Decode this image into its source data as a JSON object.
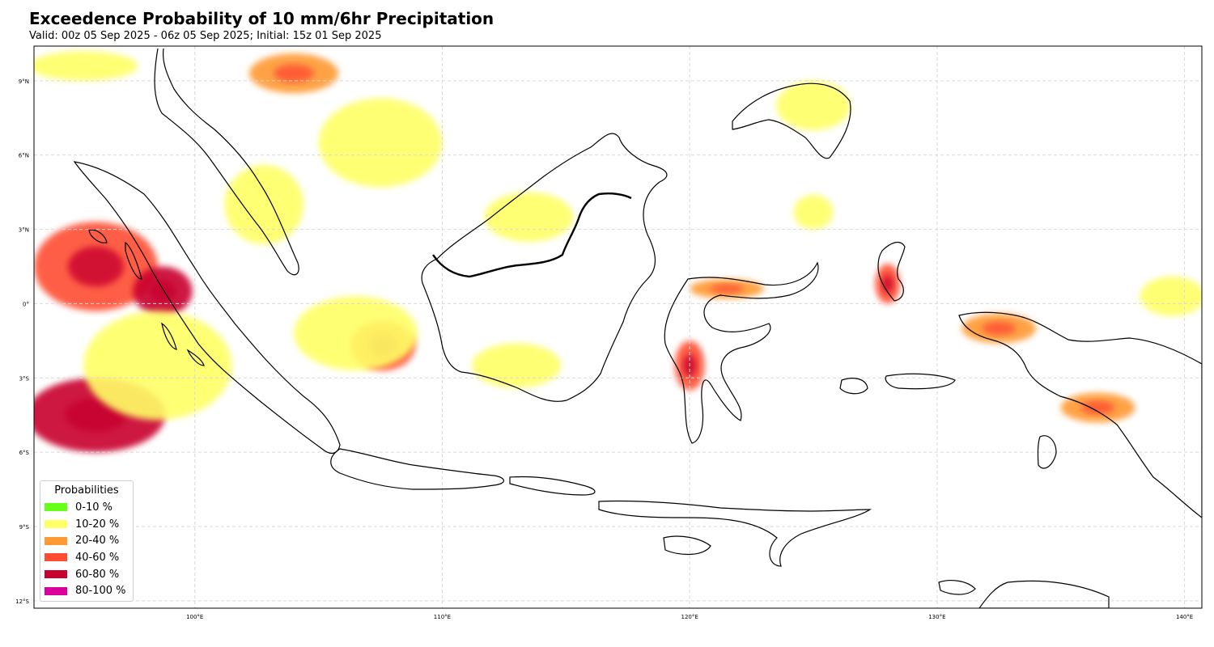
{
  "title": "Exceedence Probability of 10 mm/6hr Precipitation",
  "subtitle": "Valid: 00z 05 Sep 2025 - 06z 05 Sep 2025; Initial: 15z 01 Sep 2025",
  "map": {
    "lon_range": [
      93.5,
      140.7
    ],
    "lat_range": [
      -12.3,
      10.4
    ],
    "lon_ticks": [
      {
        "value": 100,
        "label": "100°E"
      },
      {
        "value": 110,
        "label": "110°E"
      },
      {
        "value": 120,
        "label": "120°E"
      },
      {
        "value": 130,
        "label": "130°E"
      },
      {
        "value": 140,
        "label": "140°E"
      }
    ],
    "lat_ticks": [
      {
        "value": 9,
        "label": "9°N"
      },
      {
        "value": 6,
        "label": "6°N"
      },
      {
        "value": 3,
        "label": "3°N"
      },
      {
        "value": 0,
        "label": "0°"
      },
      {
        "value": -3,
        "label": "3°S"
      },
      {
        "value": -6,
        "label": "6°S"
      },
      {
        "value": -9,
        "label": "9°S"
      },
      {
        "value": -12,
        "label": "12°S"
      }
    ],
    "gridlines": true,
    "coastline_color": "#000000",
    "border_color": "#000000",
    "grid_color": "#d9d9d9"
  },
  "legend": {
    "title": "Probabilities",
    "position": "lower-left",
    "items": [
      {
        "label": "0-10 %",
        "color": "#66ff1a"
      },
      {
        "label": "10-20 %",
        "color": "#ffff66"
      },
      {
        "label": "20-40 %",
        "color": "#ff9933"
      },
      {
        "label": "40-60 %",
        "color": "#ff4d33"
      },
      {
        "label": "60-80 %",
        "color": "#c8002d"
      },
      {
        "label": "80-100 %",
        "color": "#d9009b"
      }
    ]
  },
  "precip_areas": [
    {
      "name": "north-andaman-sea",
      "lon": 95.5,
      "lat": 9.6,
      "rx": 2.2,
      "ry": 0.6,
      "level": 1
    },
    {
      "name": "malacca-south-china",
      "lon": 104.0,
      "lat": 9.3,
      "rx": 1.8,
      "ry": 0.8,
      "level": 2
    },
    {
      "name": "south-china-sea-west",
      "lon": 107.5,
      "lat": 6.5,
      "rx": 2.5,
      "ry": 1.8,
      "level": 1
    },
    {
      "name": "malay-peninsula",
      "lon": 102.8,
      "lat": 4.0,
      "rx": 1.6,
      "ry": 1.6,
      "level": 1
    },
    {
      "name": "west-sumatra-ocean",
      "lon": 96.0,
      "lat": 1.5,
      "rx": 2.5,
      "ry": 1.8,
      "level": 3
    },
    {
      "name": "sumatra-west-coast",
      "lon": 98.7,
      "lat": 0.5,
      "rx": 1.2,
      "ry": 1.0,
      "level": 4
    },
    {
      "name": "indian-ocean-south",
      "lon": 96.0,
      "lat": -4.5,
      "rx": 2.8,
      "ry": 1.5,
      "level": 4
    },
    {
      "name": "indian-ocean-band",
      "lon": 98.5,
      "lat": -2.5,
      "rx": 3.0,
      "ry": 2.2,
      "level": 1
    },
    {
      "name": "bangka-belitung",
      "lon": 107.6,
      "lat": -1.7,
      "rx": 1.3,
      "ry": 1.0,
      "level": 3
    },
    {
      "name": "java-sea-west",
      "lon": 106.5,
      "lat": -1.2,
      "rx": 2.5,
      "ry": 1.5,
      "level": 1
    },
    {
      "name": "north-borneo",
      "lon": 113.5,
      "lat": 3.5,
      "rx": 1.8,
      "ry": 1.0,
      "level": 1
    },
    {
      "name": "central-kalimantan",
      "lon": 113.0,
      "lat": -2.5,
      "rx": 1.8,
      "ry": 0.9,
      "level": 1
    },
    {
      "name": "sulawesi-central",
      "lon": 120.0,
      "lat": -2.5,
      "rx": 0.6,
      "ry": 1.0,
      "level": 3
    },
    {
      "name": "sulawesi-north-arm",
      "lon": 121.5,
      "lat": 0.6,
      "rx": 1.5,
      "ry": 0.4,
      "level": 2
    },
    {
      "name": "mindanao",
      "lon": 125.0,
      "lat": 8.0,
      "rx": 1.5,
      "ry": 1.0,
      "level": 1
    },
    {
      "name": "celebes-sea",
      "lon": 125.0,
      "lat": 3.7,
      "rx": 0.8,
      "ry": 0.7,
      "level": 1
    },
    {
      "name": "halmahera",
      "lon": 128.0,
      "lat": 0.8,
      "rx": 0.5,
      "ry": 0.8,
      "level": 3
    },
    {
      "name": "bird-head",
      "lon": 132.5,
      "lat": -1.0,
      "rx": 1.5,
      "ry": 0.6,
      "level": 2
    },
    {
      "name": "papua-south",
      "lon": 136.5,
      "lat": -4.2,
      "rx": 1.5,
      "ry": 0.6,
      "level": 2
    },
    {
      "name": "pacific-east",
      "lon": 139.5,
      "lat": 0.3,
      "rx": 1.3,
      "ry": 0.8,
      "level": 1
    }
  ]
}
